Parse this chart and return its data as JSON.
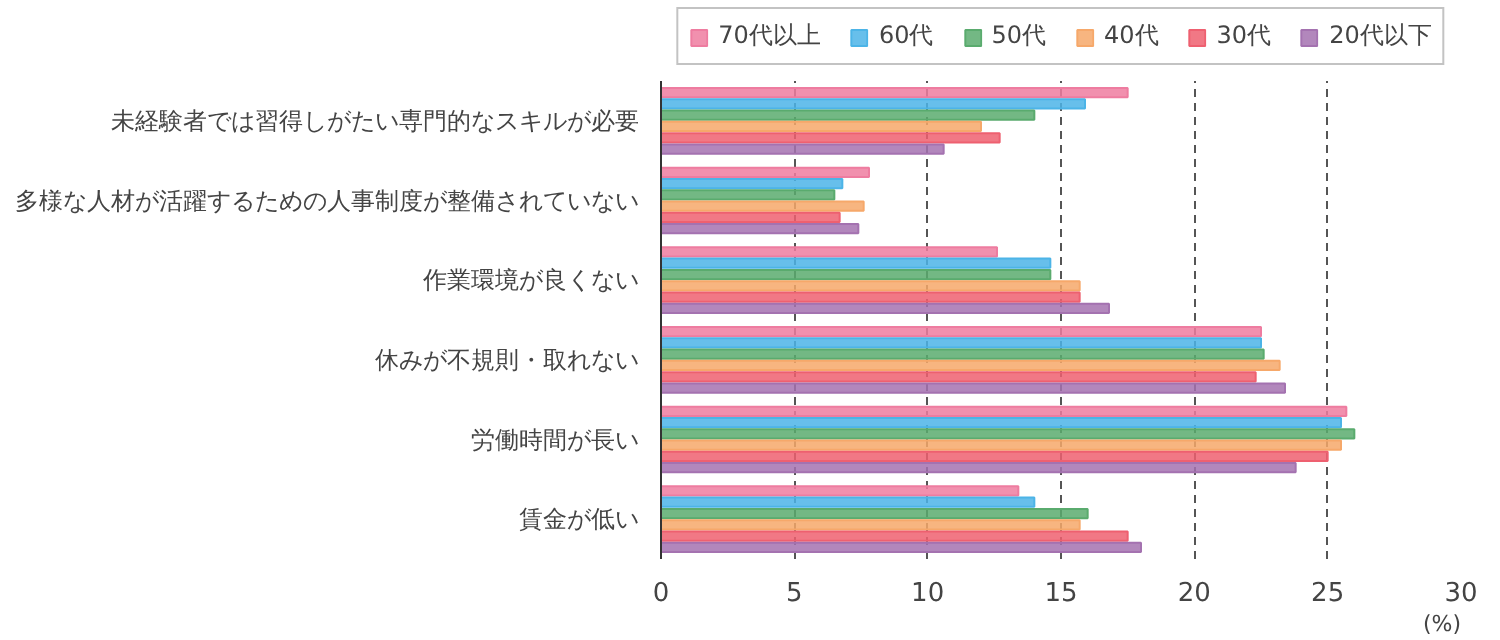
{
  "chart_data": {
    "type": "bar",
    "orientation": "horizontal",
    "xlabel": "(%)",
    "categories": [
      "未経験者では習得しがたい専門的なスキルが必要",
      "多様な人材が活躍するための人事制度が整備されていない",
      "作業環境が良くない",
      "休みが不規則・取れない",
      "労働時間が長い",
      "賃金が低い"
    ],
    "series": [
      {
        "name": "70代以上",
        "color": "#ee7ca0",
        "values": [
          17.5,
          7.8,
          12.6,
          22.5,
          25.7,
          13.4
        ]
      },
      {
        "name": "60代",
        "color": "#4cb4e7",
        "values": [
          15.9,
          6.8,
          14.6,
          22.5,
          25.5,
          14.0
        ]
      },
      {
        "name": "50代",
        "color": "#5aab6e",
        "values": [
          14.0,
          6.5,
          14.6,
          22.6,
          26.0,
          16.0
        ]
      },
      {
        "name": "40代",
        "color": "#f6a86a",
        "values": [
          12.0,
          7.6,
          15.7,
          23.2,
          25.5,
          15.7
        ]
      },
      {
        "name": "30代",
        "color": "#ee6070",
        "values": [
          12.7,
          6.7,
          15.7,
          22.3,
          25.0,
          17.5
        ]
      },
      {
        "name": "20代以下",
        "color": "#a472b0",
        "values": [
          10.6,
          7.4,
          16.8,
          23.4,
          23.8,
          18.0
        ]
      }
    ],
    "xlim": [
      0,
      30
    ],
    "xticks": [
      0,
      5,
      10,
      15,
      20,
      25,
      30
    ],
    "grid": "x",
    "legend": "top"
  }
}
